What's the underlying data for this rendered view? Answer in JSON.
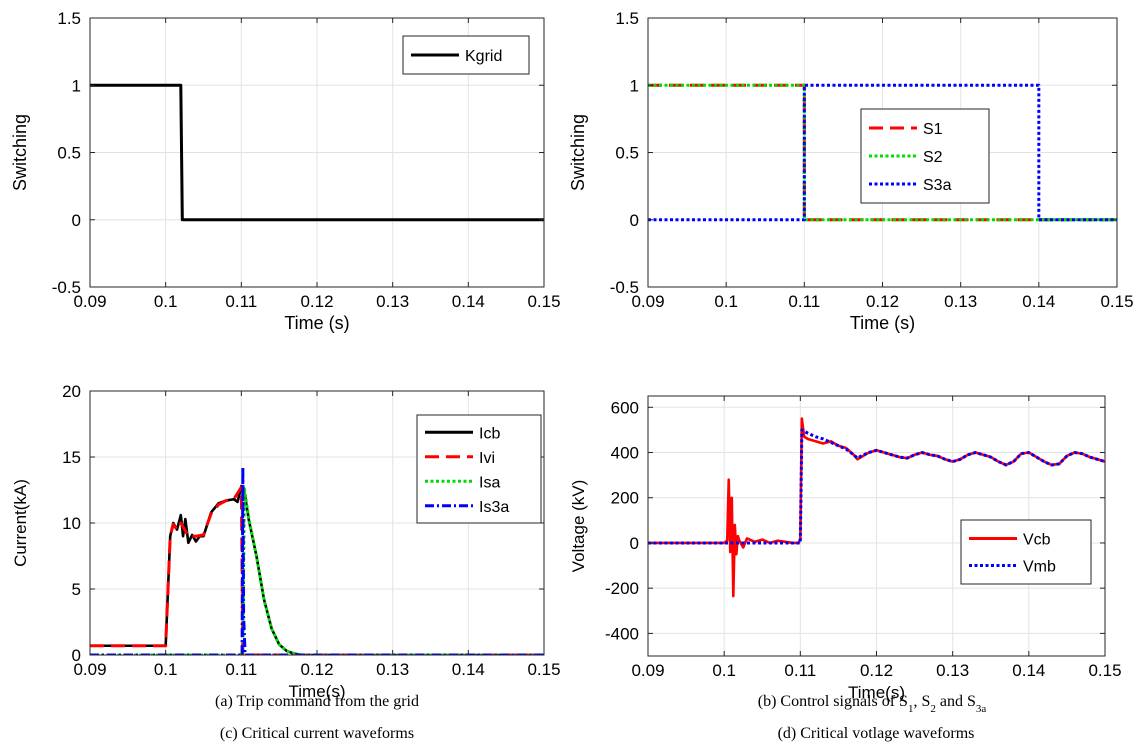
{
  "captions": [
    "(a) Trip command from the grid",
    "(b) Control signals of S1, S2 and S3a",
    "(c) Critical current waveforms",
    "(d) Critical votlage waveforms"
  ],
  "chart_data": [
    {
      "type": "line",
      "xlabel": "Time (s)",
      "ylabel": "Switching",
      "xlim": [
        0.09,
        0.15
      ],
      "ylim": [
        -0.5,
        1.5
      ],
      "xticks": [
        "0.09",
        "0.1",
        "0.11",
        "0.12",
        "0.13",
        "0.14",
        "0.15"
      ],
      "yticks": [
        "-0.5",
        "0",
        "0.5",
        "1",
        "1.5"
      ],
      "grid": true,
      "legend_position": "top-right",
      "series": [
        {
          "name": "Kgrid",
          "color": "#000000",
          "style": "solid",
          "x": [
            0.09,
            0.102,
            0.1022,
            0.15
          ],
          "y": [
            1,
            1,
            0,
            0
          ]
        }
      ]
    },
    {
      "type": "line",
      "xlabel": "Time (s)",
      "ylabel": "Switching",
      "xlim": [
        0.09,
        0.15
      ],
      "ylim": [
        -0.5,
        1.5
      ],
      "xticks": [
        "0.09",
        "0.1",
        "0.11",
        "0.12",
        "0.13",
        "0.14",
        "0.15"
      ],
      "yticks": [
        "-0.5",
        "0",
        "0.5",
        "1",
        "1.5"
      ],
      "grid": true,
      "legend_position": "center",
      "series": [
        {
          "name": "S1",
          "color": "#ff0000",
          "style": "dashed",
          "x": [
            0.09,
            0.11,
            0.11,
            0.15
          ],
          "y": [
            1,
            1,
            0,
            0
          ]
        },
        {
          "name": "S2",
          "color": "#00dd00",
          "style": "dotted",
          "x": [
            0.09,
            0.11,
            0.11,
            0.15
          ],
          "y": [
            1,
            1,
            0,
            0
          ]
        },
        {
          "name": "S3a",
          "color": "#0000ff",
          "style": "dotted",
          "x": [
            0.09,
            0.11,
            0.11,
            0.14,
            0.14,
            0.15
          ],
          "y": [
            0,
            0,
            1,
            1,
            0,
            0
          ]
        }
      ]
    },
    {
      "type": "line",
      "xlabel": "Time(s)",
      "ylabel": "Current(kA)",
      "xlim": [
        0.09,
        0.15
      ],
      "ylim": [
        0,
        20
      ],
      "xticks": [
        "0.09",
        "0.1",
        "0.11",
        "0.12",
        "0.13",
        "0.14",
        "0.15"
      ],
      "yticks": [
        "0",
        "5",
        "10",
        "15",
        "20"
      ],
      "grid": true,
      "legend_position": "top-right",
      "series": [
        {
          "name": "Icb",
          "color": "#000000",
          "style": "solid",
          "x": [
            0.09,
            0.1,
            0.1006,
            0.101,
            0.1015,
            0.102,
            0.1023,
            0.1026,
            0.103,
            0.1035,
            0.104,
            0.1045,
            0.105,
            0.106,
            0.107,
            0.108,
            0.109,
            0.1095,
            0.1098,
            0.11,
            0.1102,
            0.1105,
            0.111,
            0.112,
            0.113,
            0.114,
            0.115,
            0.116,
            0.117,
            0.118,
            0.15
          ],
          "y": [
            0.7,
            0.7,
            9.0,
            10.0,
            9.5,
            10.6,
            9.0,
            10.3,
            8.5,
            9.1,
            8.6,
            9.0,
            9.0,
            10.8,
            11.5,
            11.7,
            11.8,
            11.6,
            12.3,
            12.8,
            12.6,
            12.0,
            10.2,
            7.5,
            4.2,
            2.0,
            0.8,
            0.3,
            0.1,
            0,
            0
          ]
        },
        {
          "name": "Ivi",
          "color": "#ff0000",
          "style": "dashed",
          "x": [
            0.09,
            0.1,
            0.1006,
            0.101,
            0.1015,
            0.102,
            0.103,
            0.104,
            0.105,
            0.106,
            0.107,
            0.108,
            0.109,
            0.11,
            0.1102,
            0.15
          ],
          "y": [
            0.7,
            0.7,
            9.0,
            9.9,
            9.5,
            10.0,
            9.0,
            9.0,
            9.1,
            10.7,
            11.4,
            11.7,
            11.8,
            12.7,
            0,
            0
          ]
        },
        {
          "name": "Isa",
          "color": "#00dd00",
          "style": "dotted",
          "x": [
            0.09,
            0.1102,
            0.1104,
            0.111,
            0.112,
            0.113,
            0.114,
            0.115,
            0.116,
            0.117,
            0.118,
            0.15
          ],
          "y": [
            0,
            0,
            12.6,
            10.3,
            7.5,
            4.2,
            2.0,
            0.8,
            0.3,
            0.1,
            0,
            0
          ]
        },
        {
          "name": "Is3a",
          "color": "#0000ff",
          "style": "dashdot",
          "x": [
            0.09,
            0.1101,
            0.1102,
            0.1103,
            0.1105,
            0.15
          ],
          "y": [
            0,
            0,
            14.2,
            3.0,
            0,
            0
          ]
        }
      ]
    },
    {
      "type": "line",
      "xlabel": "Time(s)",
      "ylabel": "Voltage (kV)",
      "xlim": [
        0.09,
        0.15
      ],
      "ylim": [
        -500,
        650
      ],
      "xticks": [
        "0.09",
        "0.1",
        "0.11",
        "0.12",
        "0.13",
        "0.14",
        "0.15"
      ],
      "yticks": [
        "-400",
        "-200",
        "0",
        "200",
        "400",
        "600"
      ],
      "grid": true,
      "legend_position": "bottom-right",
      "series": [
        {
          "name": "Vcb",
          "color": "#ff0000",
          "style": "solid",
          "x": [
            0.09,
            0.1,
            0.1004,
            0.1006,
            0.1008,
            0.101,
            0.1012,
            0.1014,
            0.1016,
            0.1018,
            0.102,
            0.1025,
            0.103,
            0.104,
            0.105,
            0.106,
            0.107,
            0.108,
            0.109,
            0.1098,
            0.11,
            0.1102,
            0.1105,
            0.111,
            0.112,
            0.113,
            0.114,
            0.115,
            0.116,
            0.117,
            0.1175,
            0.118,
            0.119,
            0.12,
            0.121,
            0.122,
            0.123,
            0.124,
            0.125,
            0.126,
            0.127,
            0.128,
            0.129,
            0.13,
            0.131,
            0.132,
            0.133,
            0.134,
            0.135,
            0.136,
            0.137,
            0.138,
            0.139,
            0.14,
            0.141,
            0.142,
            0.143,
            0.144,
            0.145,
            0.146,
            0.147,
            0.148,
            0.149,
            0.15
          ],
          "y": [
            0,
            0,
            10,
            280,
            -40,
            200,
            -235,
            80,
            -50,
            30,
            10,
            -20,
            20,
            5,
            15,
            0,
            10,
            5,
            0,
            0,
            20,
            550,
            470,
            460,
            450,
            440,
            450,
            430,
            420,
            390,
            370,
            380,
            400,
            410,
            400,
            390,
            380,
            375,
            390,
            400,
            390,
            385,
            370,
            360,
            370,
            390,
            400,
            390,
            380,
            360,
            345,
            360,
            395,
            400,
            380,
            360,
            345,
            350,
            385,
            400,
            395,
            380,
            370,
            360
          ]
        },
        {
          "name": "Vmb",
          "color": "#0000ff",
          "style": "dotted",
          "x": [
            0.09,
            0.11,
            0.1102,
            0.1105,
            0.111,
            0.112,
            0.113,
            0.114,
            0.115,
            0.116,
            0.117,
            0.1175,
            0.118,
            0.119,
            0.12,
            0.121,
            0.122,
            0.123,
            0.124,
            0.125,
            0.126,
            0.127,
            0.128,
            0.129,
            0.13,
            0.131,
            0.132,
            0.133,
            0.134,
            0.135,
            0.136,
            0.137,
            0.138,
            0.139,
            0.14,
            0.141,
            0.142,
            0.143,
            0.144,
            0.145,
            0.146,
            0.147,
            0.148,
            0.149,
            0.15
          ],
          "y": [
            0,
            0,
            500,
            495,
            485,
            470,
            460,
            445,
            430,
            415,
            390,
            375,
            385,
            400,
            410,
            400,
            390,
            380,
            375,
            390,
            400,
            390,
            385,
            370,
            360,
            370,
            390,
            400,
            390,
            380,
            360,
            345,
            360,
            395,
            400,
            380,
            360,
            345,
            350,
            385,
            400,
            395,
            380,
            370,
            360
          ]
        }
      ]
    }
  ]
}
